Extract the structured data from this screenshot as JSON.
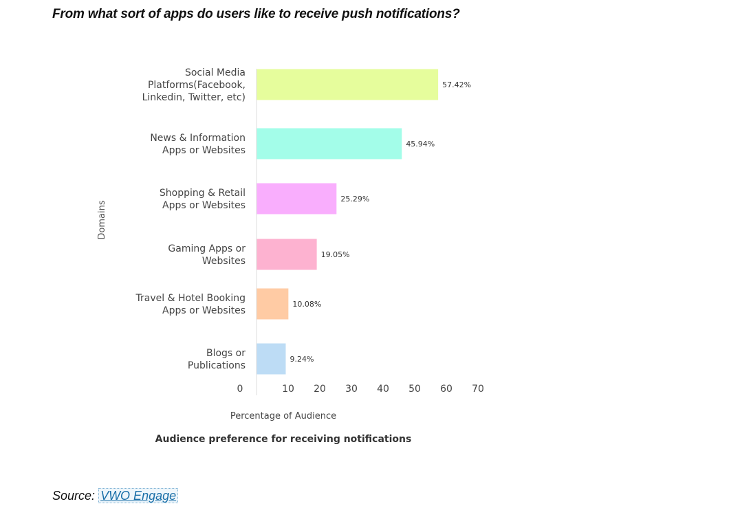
{
  "heading": "From what sort of apps do users like to receive push notifications?",
  "source": {
    "label": "Source:",
    "link_text": "VWO Engage"
  },
  "chart_data": {
    "type": "bar",
    "orientation": "horizontal",
    "title": "Audience preference for receiving notifications",
    "xlabel": "Percentage of Audience",
    "ylabel": "Domains",
    "xlim": [
      0,
      70
    ],
    "xticks": [
      "0",
      "10",
      "20",
      "30",
      "40",
      "50",
      "60",
      "70"
    ],
    "grid": false,
    "legend": "none",
    "categories": [
      [
        "Social Media",
        "Platforms(Facebook,",
        "Linkedin, Twitter, etc)"
      ],
      [
        "News & Information",
        "Apps or Websites"
      ],
      [
        "Shopping & Retail",
        "Apps or Websites"
      ],
      [
        "Gaming Apps or",
        "Websites"
      ],
      [
        "Travel & Hotel Booking",
        "Apps or Websites"
      ],
      [
        "Blogs or",
        "Publications"
      ]
    ],
    "values": [
      57.42,
      45.94,
      25.29,
      19.05,
      10.08,
      9.24
    ],
    "value_labels": [
      "57.42%",
      "45.94%",
      "25.29%",
      "19.05%",
      "10.08%",
      "9.24%"
    ],
    "colors": [
      "#e6fd9c",
      "#a3fde9",
      "#f9aefd",
      "#fdb2d0",
      "#ffcba4",
      "#bddcf5"
    ]
  }
}
